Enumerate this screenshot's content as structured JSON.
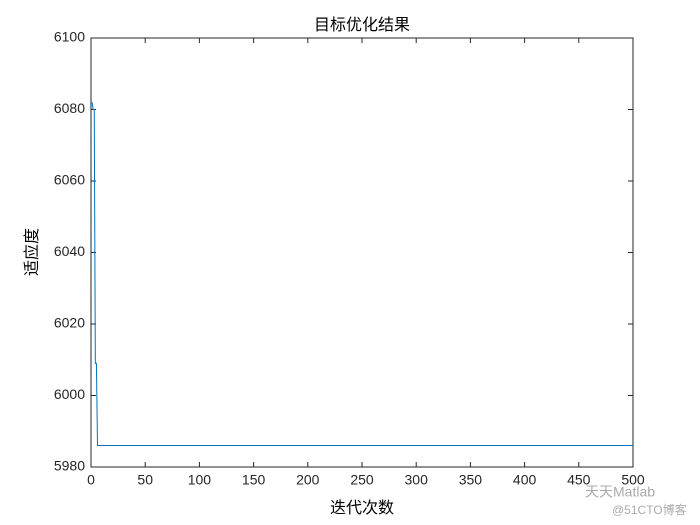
{
  "chart_data": {
    "type": "line",
    "title": "目标优化结果",
    "xlabel": "迭代次数",
    "ylabel": "适应度",
    "x": [
      1,
      2,
      3,
      4,
      5,
      6,
      500
    ],
    "series": [
      {
        "color": "#0072BD",
        "values": [
          6082,
          6080,
          6080,
          6009,
          6009,
          5986,
          5986
        ]
      }
    ],
    "xlim": [
      0,
      500
    ],
    "xticks": [
      0,
      50,
      100,
      150,
      200,
      250,
      300,
      350,
      400,
      450,
      500
    ],
    "ylim": [
      5980,
      6100
    ],
    "yticks": [
      5980,
      6000,
      6020,
      6040,
      6060,
      6080,
      6100
    ],
    "grid": false
  },
  "watermark": {
    "account": "天天Matlab",
    "site": "@51CTO博客"
  }
}
